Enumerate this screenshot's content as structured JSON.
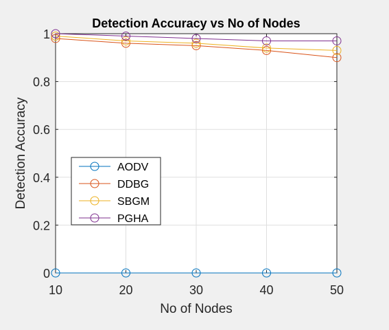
{
  "chart_data": {
    "type": "line",
    "title": "Detection Accuracy vs No of Nodes",
    "xlabel": "No of Nodes",
    "ylabel": "Detection Accuracy",
    "x": [
      10,
      20,
      30,
      40,
      50
    ],
    "xlim": [
      10,
      50
    ],
    "ylim": [
      0,
      1
    ],
    "xticks": [
      "10",
      "20",
      "30",
      "40",
      "50"
    ],
    "yticks": [
      "0",
      "0.2",
      "0.4",
      "0.6",
      "0.8",
      "1"
    ],
    "grid": true,
    "legend_position": "center-left",
    "marker": "circle",
    "series": [
      {
        "name": "AODV",
        "color": "#0072bd",
        "values": [
          0,
          0,
          0,
          0,
          0
        ]
      },
      {
        "name": "DDBG",
        "color": "#d95319",
        "values": [
          0.98,
          0.96,
          0.95,
          0.93,
          0.9
        ]
      },
      {
        "name": "SBGM",
        "color": "#edb120",
        "values": [
          0.99,
          0.97,
          0.96,
          0.94,
          0.93
        ]
      },
      {
        "name": "PGHA",
        "color": "#7e2f8e",
        "values": [
          1.0,
          0.99,
          0.98,
          0.97,
          0.97
        ]
      }
    ]
  }
}
